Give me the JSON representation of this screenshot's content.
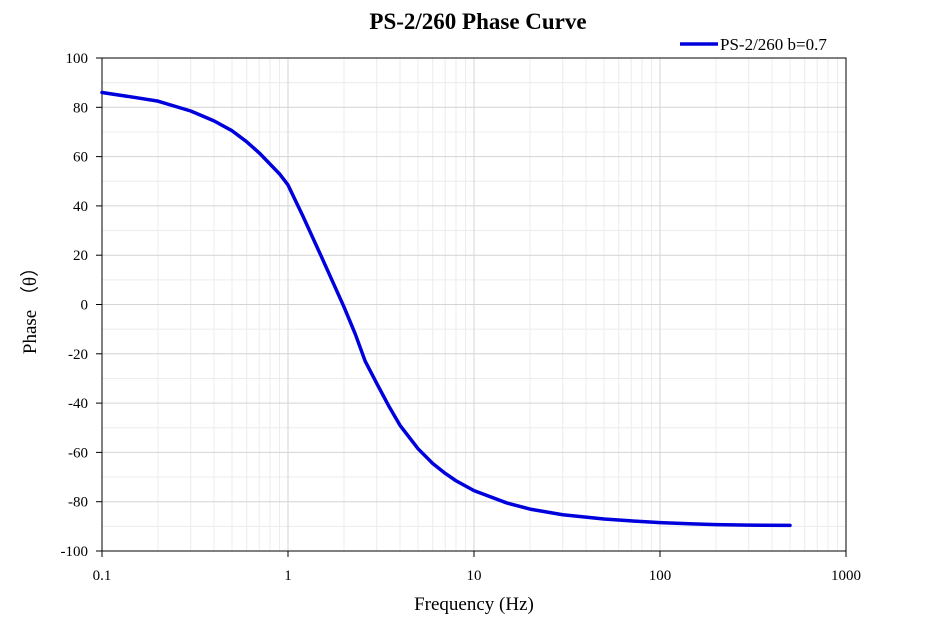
{
  "chart_data": {
    "type": "line",
    "title": "PS-2/260 Phase Curve",
    "xlabel": "Frequency (Hz)",
    "ylabel": "Phase （θ）",
    "xscale": "log",
    "xlim": [
      0.1,
      1000
    ],
    "ylim": [
      -100,
      100
    ],
    "xticks": [
      "0.1",
      "1",
      "10",
      "100",
      "1000"
    ],
    "yticks": [
      "100",
      "80",
      "60",
      "40",
      "20",
      "0",
      "-20",
      "-40",
      "-60",
      "-80",
      "-100"
    ],
    "grid": true,
    "legend_position": "top-right",
    "series": [
      {
        "name": "PS-2/260 b=0.7",
        "color": "#0000DD",
        "x": [
          0.1,
          0.15,
          0.2,
          0.3,
          0.4,
          0.5,
          0.6,
          0.7,
          0.8,
          0.9,
          1.0,
          1.2,
          1.5,
          2.0,
          2.3,
          2.6,
          3.0,
          3.5,
          4.0,
          5.0,
          6.0,
          7.0,
          8.0,
          10.0,
          15.0,
          20.0,
          30.0,
          50.0,
          70.0,
          100.0,
          150.0,
          200.0,
          300.0,
          500.0
        ],
        "y": [
          86,
          84,
          82.5,
          78.5,
          74.5,
          70.5,
          66,
          61.5,
          57,
          53,
          48.5,
          36,
          20,
          -1,
          -12,
          -23,
          -32,
          -41.5,
          -49,
          -58.5,
          -64.5,
          -68.5,
          -71.5,
          -75.5,
          -80.5,
          -83,
          -85.3,
          -87,
          -87.8,
          -88.5,
          -89,
          -89.3,
          -89.5,
          -89.6
        ]
      }
    ]
  }
}
